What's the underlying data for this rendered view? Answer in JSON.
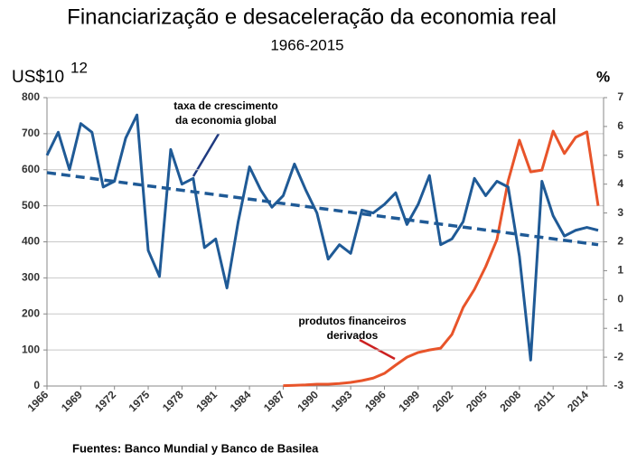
{
  "chart_data": {
    "type": "line",
    "title": "Financiarização e desaceleração da economia real",
    "subtitle": "1966-2015",
    "y_label": "US$10",
    "y_label_exponent": "12",
    "y2_label": "%",
    "source": "Fuentes: Banco Mundial y Banco de Basilea",
    "annotations": [
      {
        "lines": [
          "taxa de crescimento",
          "da economia global"
        ]
      },
      {
        "lines": [
          "produtos financeiros",
          "derivados"
        ]
      }
    ],
    "xlim": [
      1966,
      2015
    ],
    "xticks": [
      1966,
      1969,
      1972,
      1975,
      1978,
      1981,
      1984,
      1987,
      1990,
      1993,
      1996,
      1999,
      2002,
      2005,
      2008,
      2011,
      2014
    ],
    "ylim": [
      0,
      800
    ],
    "yticks": [
      0,
      100,
      200,
      300,
      400,
      500,
      600,
      700,
      800
    ],
    "y2lim": [
      -3,
      7
    ],
    "y2ticks": [
      -3,
      -2,
      -1,
      0,
      1,
      2,
      3,
      4,
      5,
      6,
      7
    ],
    "grid": true,
    "series": [
      {
        "color": "#e8542a",
        "axis": "y",
        "dashed": false,
        "x": [
          1987,
          1988,
          1989,
          1990,
          1991,
          1992,
          1993,
          1994,
          1995,
          1996,
          1997,
          1998,
          1999,
          2000,
          2001,
          2002,
          2003,
          2004,
          2005,
          2006,
          2007,
          2008,
          2009,
          2010,
          2011,
          2012,
          2013,
          2014,
          2015
        ],
        "values": [
          1,
          2,
          3,
          5,
          5,
          7,
          10,
          15,
          22,
          35,
          58,
          80,
          93,
          100,
          105,
          143,
          218,
          268,
          331,
          406,
          569,
          682,
          594,
          599,
          707,
          645,
          690,
          705,
          500
        ]
      },
      {
        "color": "#1f5a96",
        "axis": "y2",
        "dashed": false,
        "x": [
          1966,
          1967,
          1968,
          1969,
          1970,
          1971,
          1972,
          1973,
          1974,
          1975,
          1976,
          1977,
          1978,
          1979,
          1980,
          1981,
          1982,
          1983,
          1984,
          1985,
          1986,
          1987,
          1988,
          1989,
          1990,
          1991,
          1992,
          1993,
          1994,
          1995,
          1996,
          1997,
          1998,
          1999,
          2000,
          2001,
          2002,
          2003,
          2004,
          2005,
          2006,
          2007,
          2008,
          2009,
          2010,
          2011,
          2012,
          2013,
          2014,
          2015
        ],
        "values": [
          5.0,
          5.8,
          4.5,
          6.1,
          5.8,
          3.9,
          4.1,
          5.6,
          6.4,
          1.7,
          0.8,
          5.2,
          4.0,
          4.2,
          1.8,
          2.1,
          0.4,
          2.7,
          4.6,
          3.8,
          3.2,
          3.6,
          4.7,
          3.8,
          3.0,
          1.4,
          1.9,
          1.6,
          3.1,
          3.0,
          3.3,
          3.7,
          2.6,
          3.3,
          4.3,
          1.9,
          2.1,
          2.7,
          4.2,
          3.6,
          4.1,
          3.9,
          1.5,
          -2.1,
          4.1,
          2.9,
          2.2,
          2.4,
          2.5,
          2.4
        ]
      },
      {
        "color": "#1f5a96",
        "axis": "y2",
        "dashed": true,
        "x": [
          1966,
          2015
        ],
        "values": [
          4.4,
          1.9
        ]
      }
    ]
  }
}
